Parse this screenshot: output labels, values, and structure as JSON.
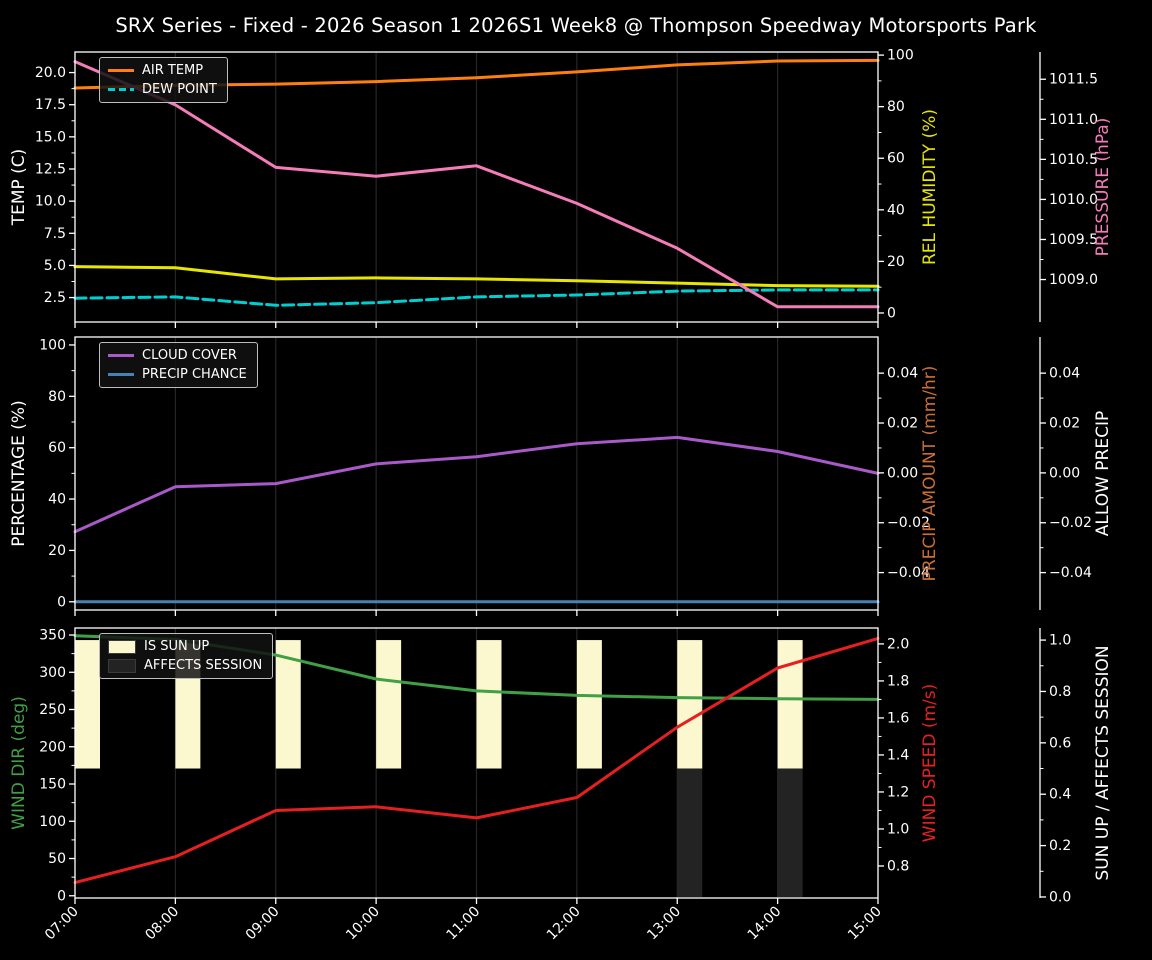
{
  "title": "SRX Series - Fixed - 2026 Season 1 2026S1 Week8 @ Thompson Speedway Motorsports Park",
  "colors": {
    "background": "#000000",
    "foreground": "#ffffff",
    "grid": "#262626"
  },
  "chart_data": {
    "type": "line",
    "grid": "vertical-only",
    "x": [
      "07:00",
      "08:00",
      "09:00",
      "10:00",
      "11:00",
      "12:00",
      "13:00",
      "14:00",
      "15:00"
    ],
    "plots": [
      {
        "name": "temperature-humidity-pressure",
        "legend_position": "upper-left",
        "axes": [
          {
            "id": "temp",
            "side": "left",
            "label": "TEMP (C)",
            "color": "#ffffff",
            "ylim": [
              0.6,
              21.6
            ],
            "ticks": [
              {
                "value": 2.5,
                "label": "2.5"
              },
              {
                "value": 5.0,
                "label": "5.0"
              },
              {
                "value": 7.5,
                "label": "7.5"
              },
              {
                "value": 10.0,
                "label": "10.0"
              },
              {
                "value": 12.5,
                "label": "12.5"
              },
              {
                "value": 15.0,
                "label": "15.0"
              },
              {
                "value": 17.5,
                "label": "17.5"
              },
              {
                "value": 20.0,
                "label": "20.0"
              }
            ]
          },
          {
            "id": "hum",
            "side": "right",
            "label": "REL HUMIDITY (%)",
            "color": "#e6e600",
            "ylim": [
              -3.5,
              101.2
            ],
            "ticks": [
              {
                "value": 0,
                "label": "0"
              },
              {
                "value": 20,
                "label": "20"
              },
              {
                "value": 40,
                "label": "40"
              },
              {
                "value": 60,
                "label": "60"
              },
              {
                "value": 80,
                "label": "80"
              },
              {
                "value": 100,
                "label": "100"
              }
            ]
          },
          {
            "id": "press",
            "side": "right2",
            "label": "PRESSURE (hPa)",
            "color": "#f47cb8",
            "ylim": [
              1008.47,
              1011.84
            ],
            "ticks": [
              {
                "value": 1009.0,
                "label": "1009.0"
              },
              {
                "value": 1009.5,
                "label": "1009.5"
              },
              {
                "value": 1010.0,
                "label": "1010.0"
              },
              {
                "value": 1010.5,
                "label": "1010.5"
              },
              {
                "value": 1011.0,
                "label": "1011.0"
              },
              {
                "value": 1011.5,
                "label": "1011.5"
              }
            ]
          }
        ],
        "series": [
          {
            "name": "AIR TEMP",
            "axis": "temp",
            "color": "#ff7f0e",
            "dash": false,
            "values": [
              18.8,
              19.0,
              19.1,
              19.3,
              19.6,
              20.05,
              20.6,
              20.9,
              20.95
            ]
          },
          {
            "name": "DEW POINT",
            "axis": "temp",
            "color": "#00ced1",
            "dash": true,
            "values": [
              2.45,
              2.55,
              1.9,
              2.1,
              2.55,
              2.7,
              3.0,
              3.1,
              3.1
            ]
          },
          {
            "name": "REL HUMIDITY",
            "axis": "hum",
            "color": "#e6e600",
            "dash": false,
            "values": [
              18.0,
              17.5,
              13.2,
              13.6,
              13.2,
              12.5,
              11.6,
              10.6,
              10.4
            ]
          },
          {
            "name": "PRESSURE",
            "axis": "press",
            "color": "#f47cb8",
            "dash": false,
            "values": [
              1011.72,
              1011.18,
              1010.4,
              1010.29,
              1010.42,
              1009.95,
              1009.39,
              1008.66,
              1008.66
            ]
          }
        ],
        "legend": [
          {
            "label": "AIR TEMP",
            "swatch": "line",
            "color": "#ff7f0e"
          },
          {
            "label": "DEW POINT",
            "swatch": "dash",
            "color": "#00ced1"
          }
        ]
      },
      {
        "name": "cloud-precip",
        "legend_position": "upper-left",
        "axes": [
          {
            "id": "pct",
            "side": "left",
            "label": "PERCENTAGE (%)",
            "color": "#ffffff",
            "ylim": [
              -3.2,
              103.1
            ],
            "ticks": [
              {
                "value": 0,
                "label": "0"
              },
              {
                "value": 20,
                "label": "20"
              },
              {
                "value": 40,
                "label": "40"
              },
              {
                "value": 60,
                "label": "60"
              },
              {
                "value": 80,
                "label": "80"
              },
              {
                "value": 100,
                "label": "100"
              }
            ]
          },
          {
            "id": "pamt",
            "side": "right",
            "label": "PRECIP AMOUNT (mm/hr)",
            "color": "#c96f34",
            "ylim": [
              -0.055,
              0.0545
            ],
            "ticks": [
              {
                "value": -0.04,
                "label": "−0.04"
              },
              {
                "value": -0.02,
                "label": "−0.02"
              },
              {
                "value": 0.0,
                "label": "0.00"
              },
              {
                "value": 0.02,
                "label": "0.02"
              },
              {
                "value": 0.04,
                "label": "0.04"
              }
            ]
          },
          {
            "id": "allow",
            "side": "right2",
            "label": "ALLOW PRECIP",
            "color": "#ffffff",
            "ylim": [
              -0.055,
              0.0545
            ],
            "ticks": [
              {
                "value": -0.04,
                "label": "−0.04"
              },
              {
                "value": -0.02,
                "label": "−0.02"
              },
              {
                "value": 0.0,
                "label": "0.00"
              },
              {
                "value": 0.02,
                "label": "0.02"
              },
              {
                "value": 0.04,
                "label": "0.04"
              }
            ]
          }
        ],
        "series": [
          {
            "name": "CLOUD COVER",
            "axis": "pct",
            "color": "#a85ac8",
            "dash": false,
            "values": [
              27.3,
              44.8,
              46.0,
              53.7,
              56.5,
              61.5,
              64.0,
              58.5,
              50.0
            ]
          },
          {
            "name": "PRECIP CHANCE",
            "axis": "pct",
            "color": "#4682b4",
            "dash": false,
            "values": [
              0,
              0,
              0,
              0,
              0,
              0,
              0,
              0,
              0
            ]
          }
        ],
        "legend": [
          {
            "label": "CLOUD COVER",
            "swatch": "line",
            "color": "#a85ac8"
          },
          {
            "label": "PRECIP CHANCE",
            "swatch": "line",
            "color": "#4682b4"
          }
        ]
      },
      {
        "name": "wind-sun",
        "legend_position": "upper-left",
        "axes": [
          {
            "id": "dir",
            "side": "left",
            "label": "WIND DIR (deg)",
            "color": "#3fa045",
            "ylim": [
              -3,
              359.4
            ],
            "ticks": [
              {
                "value": 0,
                "label": "0"
              },
              {
                "value": 50,
                "label": "50"
              },
              {
                "value": 100,
                "label": "100"
              },
              {
                "value": 150,
                "label": "150"
              },
              {
                "value": 200,
                "label": "200"
              },
              {
                "value": 250,
                "label": "250"
              },
              {
                "value": 300,
                "label": "300"
              },
              {
                "value": 350,
                "label": "350"
              }
            ]
          },
          {
            "id": "speed",
            "side": "right",
            "label": "WIND SPEED (m/s)",
            "color": "#e62020",
            "ylim": [
              0.627,
              2.086
            ],
            "ticks": [
              {
                "value": 0.8,
                "label": "0.8"
              },
              {
                "value": 1.0,
                "label": "1.0"
              },
              {
                "value": 1.2,
                "label": "1.2"
              },
              {
                "value": 1.4,
                "label": "1.4"
              },
              {
                "value": 1.6,
                "label": "1.6"
              },
              {
                "value": 1.8,
                "label": "1.8"
              },
              {
                "value": 2.0,
                "label": "2.0"
              }
            ]
          },
          {
            "id": "sun",
            "side": "right2",
            "label": "SUN UP / AFFECTS SESSION",
            "color": "#ffffff",
            "ylim": [
              -0.004,
              1.047
            ],
            "ticks": [
              {
                "value": 0.0,
                "label": "0.0"
              },
              {
                "value": 0.2,
                "label": "0.2"
              },
              {
                "value": 0.4,
                "label": "0.4"
              },
              {
                "value": 0.6,
                "label": "0.6"
              },
              {
                "value": 0.8,
                "label": "0.8"
              },
              {
                "value": 1.0,
                "label": "1.0"
              }
            ]
          }
        ],
        "bars": [
          {
            "label": "IS SUN UP",
            "axis": "sun",
            "color": "#fbf8cf",
            "span": [
              0.5,
              1.0
            ],
            "at_hours": [
              "07:00",
              "08:00",
              "09:00",
              "10:00",
              "11:00",
              "12:00",
              "13:00",
              "14:00"
            ]
          },
          {
            "label": "AFFECTS SESSION",
            "axis": "sun",
            "color": "#232323",
            "span": [
              0.0,
              0.5
            ],
            "at_hours": [
              "13:00",
              "14:00"
            ]
          }
        ],
        "series": [
          {
            "name": "WIND DIR",
            "axis": "dir",
            "color": "#3fa045",
            "dash": false,
            "values": [
              349,
              344,
              323,
              291,
              275,
              269,
              266,
              264.5,
              263.5
            ]
          },
          {
            "name": "WIND SPEED",
            "axis": "speed",
            "color": "#e62020",
            "dash": false,
            "values": [
              0.71,
              0.85,
              1.1,
              1.12,
              1.06,
              1.17,
              1.55,
              1.87,
              2.03
            ]
          }
        ],
        "legend": [
          {
            "label": "IS SUN UP",
            "swatch": "patch",
            "color": "#fbf8cf"
          },
          {
            "label": "AFFECTS SESSION",
            "swatch": "patch",
            "color": "#232323"
          }
        ]
      }
    ]
  }
}
